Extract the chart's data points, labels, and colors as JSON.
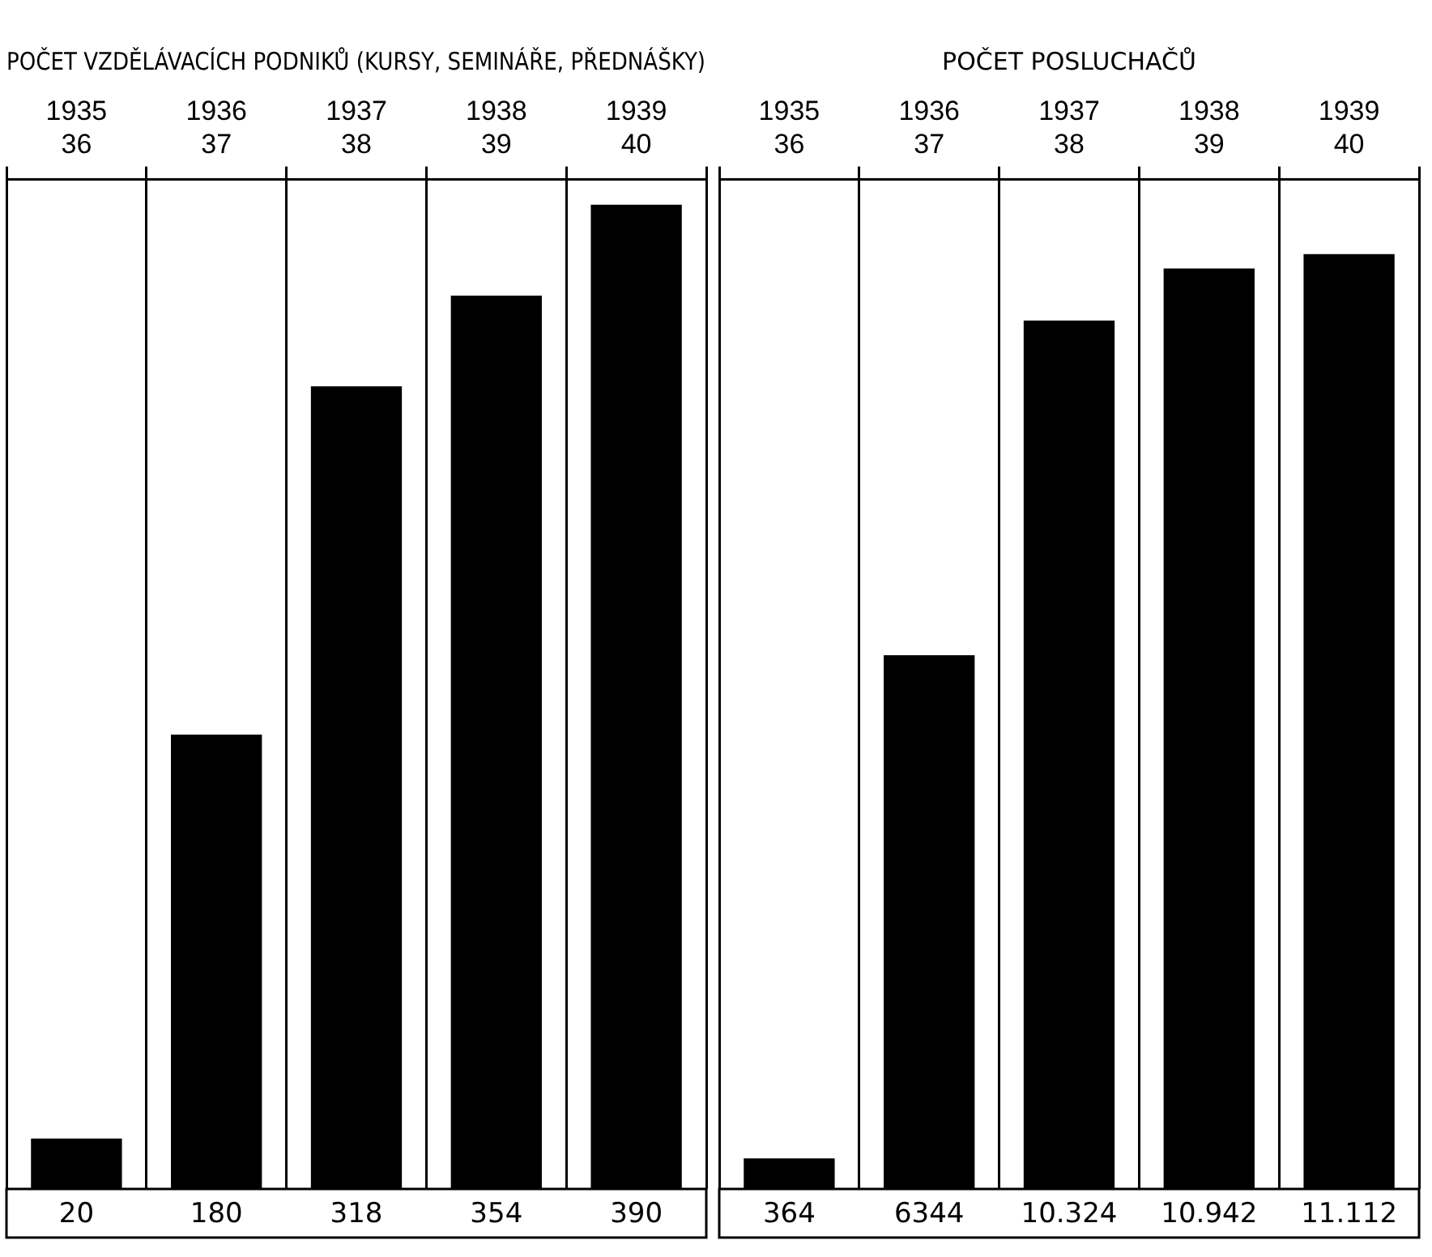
{
  "chart_data": [
    {
      "type": "bar",
      "title": "POČET VZDĚLÁVACÍCH PODNIKŮ (KURSY, SEMINÁŘE, PŘEDNÁŠKY)",
      "categories": [
        "1935 36",
        "1936 37",
        "1937 38",
        "1938 39",
        "1939 40"
      ],
      "values": [
        20,
        180,
        318,
        354,
        390
      ],
      "color": "#000000",
      "data_labels": true,
      "grid": "x"
    },
    {
      "type": "bar",
      "title": "POČET POSLUCHAČŮ",
      "categories": [
        "1935 36",
        "1936 37",
        "1937 38",
        "1938 39",
        "1939 40"
      ],
      "values": [
        364,
        6344,
        10324,
        10942,
        11112
      ],
      "value_labels": [
        "364",
        "6344",
        "10.324",
        "10.942",
        "11.112"
      ],
      "color": "#000000",
      "grid": "x"
    }
  ]
}
